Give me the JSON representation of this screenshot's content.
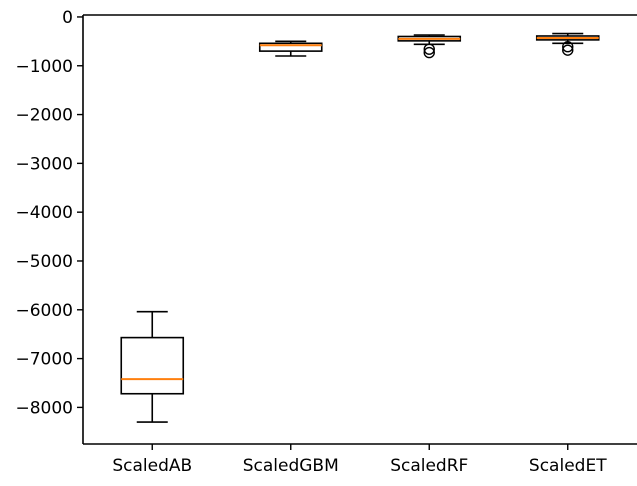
{
  "chart_data": {
    "type": "boxplot",
    "title": "",
    "xlabel": "",
    "ylabel": "",
    "categories": [
      "ScaledAB",
      "ScaledGBM",
      "ScaledRF",
      "ScaledET"
    ],
    "boxes": [
      {
        "name": "ScaledAB",
        "whisker_low": -8300,
        "q1": -7720,
        "median": -7420,
        "q3": -6570,
        "whisker_high": -6040,
        "outliers": []
      },
      {
        "name": "ScaledGBM",
        "whisker_low": -800,
        "q1": -700,
        "median": -580,
        "q3": -540,
        "whisker_high": -500,
        "outliers": []
      },
      {
        "name": "ScaledRF",
        "whisker_low": -560,
        "q1": -490,
        "median": -450,
        "q3": -400,
        "whisker_high": -370,
        "outliers": [
          -660,
          -730
        ]
      },
      {
        "name": "ScaledET",
        "whisker_low": -540,
        "q1": -470,
        "median": -430,
        "q3": -390,
        "whisker_high": -340,
        "outliers": [
          -610,
          -680
        ]
      }
    ],
    "ylim": [
      -8750,
      40
    ],
    "yticks": [
      0,
      -1000,
      -2000,
      -3000,
      -4000,
      -5000,
      -6000,
      -7000,
      -8000
    ],
    "ytick_labels": [
      "0",
      "−1000",
      "−2000",
      "−3000",
      "−4000",
      "−5000",
      "−6000",
      "−7000",
      "−8000"
    ],
    "grid": false,
    "colors": {
      "box": "#000000",
      "median": "#ff7f0e",
      "axis": "#000000"
    }
  }
}
